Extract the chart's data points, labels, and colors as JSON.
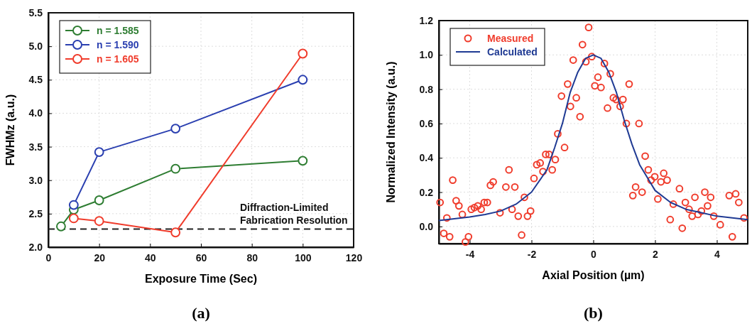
{
  "chart_data": [
    {
      "type": "line",
      "xlabel": "Exposure Time (Sec)",
      "ylabel": "FWHMz (a.u.)",
      "xlim": [
        0,
        120
      ],
      "xticks": [
        0,
        20,
        40,
        60,
        80,
        100,
        120
      ],
      "ylim": [
        2.0,
        5.5
      ],
      "yticks": [
        {
          "value": 2.0,
          "label": "2.0"
        },
        {
          "value": 2.5,
          "label": "2.5"
        },
        {
          "value": 3.0,
          "label": "3.0"
        },
        {
          "value": 3.5,
          "label": "3.5"
        },
        {
          "value": 4.0,
          "label": "4.0"
        },
        {
          "value": 4.5,
          "label": "4.5"
        },
        {
          "value": 5.0,
          "label": "5.0"
        },
        {
          "value": 5.5,
          "label": "5.5"
        }
      ],
      "grid": true,
      "legend": "top left",
      "marker": "circle",
      "series": [
        {
          "name": "n = 1.585",
          "color": "#2e7d32",
          "x": [
            5,
            10,
            20,
            50,
            100
          ],
          "values": [
            2.31,
            2.56,
            2.7,
            3.17,
            3.29
          ]
        },
        {
          "name": "n = 1.590",
          "color": "#2a3fb0",
          "x": [
            10,
            20,
            50,
            100
          ],
          "values": [
            2.63,
            3.42,
            3.77,
            4.5
          ]
        },
        {
          "name": "n = 1.605",
          "color": "#f03c2c",
          "x": [
            10,
            20,
            50,
            100
          ],
          "values": [
            2.43,
            2.39,
            2.22,
            4.89
          ]
        }
      ],
      "ref_lines": [
        {
          "axis": "y",
          "value": 2.27,
          "label": "Diffraction-Limited Fabrication Resolution",
          "color": "#222222",
          "line_style": "dashed"
        }
      ],
      "annotations": [
        "(a)"
      ]
    },
    {
      "type": "scatter",
      "xlabel": "Axial Position (µm)",
      "ylabel": "Normalized Intensity (a.u.)",
      "xlim": [
        -5,
        5
      ],
      "xticks": [
        -4,
        -2,
        0,
        2,
        4
      ],
      "ylim": [
        -0.1,
        1.2
      ],
      "yticks": [
        {
          "value": 0,
          "label": "0.0"
        },
        {
          "value": 0.2,
          "label": "0.2"
        },
        {
          "value": 0.4,
          "label": "0.4"
        },
        {
          "value": 0.6,
          "label": "0.6"
        },
        {
          "value": 0.8,
          "label": "0.8"
        },
        {
          "value": 1.0,
          "label": "1.0"
        },
        {
          "value": 1.2,
          "label": "1.2"
        }
      ],
      "grid": true,
      "legend": "top left",
      "series": [
        {
          "name": "Measured",
          "marker": "circle",
          "color": "#f03c2c",
          "x": [
            -4.96,
            -4.84,
            -4.74,
            -4.65,
            -4.55,
            -4.44,
            -4.35,
            -4.24,
            -4.14,
            -4.04,
            -3.95,
            -3.85,
            -3.74,
            -3.63,
            -3.53,
            -3.43,
            -3.33,
            -3.24,
            -3.02,
            -2.83,
            -2.73,
            -2.63,
            -2.54,
            -2.43,
            -2.32,
            -2.23,
            -2.13,
            -2.03,
            -1.92,
            -1.83,
            -1.72,
            -1.63,
            -1.54,
            -1.43,
            -1.33,
            -1.23,
            -1.15,
            -1.03,
            -0.93,
            -0.83,
            -0.74,
            -0.65,
            -0.55,
            -0.43,
            -0.35,
            -0.24,
            -0.15,
            -0.05,
            0.05,
            0.15,
            0.25,
            0.36,
            0.46,
            0.55,
            0.65,
            0.74,
            0.87,
            0.96,
            1.07,
            1.16,
            1.28,
            1.37,
            1.48,
            1.58,
            1.68,
            1.78,
            1.87,
            1.99,
            2.09,
            2.19,
            2.28,
            2.39,
            2.49,
            2.59,
            2.79,
            2.88,
            2.98,
            3.1,
            3.2,
            3.29,
            3.39,
            3.5,
            3.61,
            3.7,
            3.8,
            3.9,
            4.11,
            4.4,
            4.5,
            4.61,
            4.71,
            4.88
          ],
          "values": [
            0.14,
            -0.04,
            0.05,
            -0.06,
            0.27,
            0.15,
            0.12,
            0.07,
            -0.09,
            -0.06,
            0.1,
            0.11,
            0.12,
            0.1,
            0.14,
            0.14,
            0.24,
            0.26,
            0.08,
            0.23,
            0.33,
            0.1,
            0.23,
            0.06,
            -0.05,
            0.17,
            0.06,
            0.09,
            0.28,
            0.36,
            0.37,
            0.32,
            0.42,
            0.42,
            0.33,
            0.39,
            0.54,
            0.76,
            0.46,
            0.83,
            0.7,
            0.97,
            0.75,
            0.64,
            1.06,
            0.96,
            1.16,
            0.99,
            0.82,
            0.87,
            0.81,
            0.95,
            0.69,
            0.89,
            0.75,
            0.74,
            0.7,
            0.74,
            0.6,
            0.83,
            0.18,
            0.23,
            0.6,
            0.2,
            0.41,
            0.33,
            0.27,
            0.29,
            0.16,
            0.26,
            0.31,
            0.27,
            0.04,
            0.13,
            0.22,
            -0.01,
            0.14,
            0.1,
            0.06,
            0.17,
            0.07,
            0.09,
            0.2,
            0.12,
            0.17,
            0.06,
            0.01,
            0.18,
            -0.06,
            0.19,
            0.14,
            0.05
          ]
        },
        {
          "name": "Calculated",
          "type": "line",
          "marker": "none",
          "color": "#1f3a93",
          "x": [
            -5,
            -4.5,
            -4,
            -3.5,
            -3,
            -2.5,
            -2,
            -1.5,
            -1.25,
            -1,
            -0.75,
            -0.5,
            -0.25,
            0,
            0.25,
            0.5,
            0.75,
            1,
            1.25,
            1.5,
            2,
            2.5,
            3,
            3.5,
            4,
            4.5,
            5
          ],
          "values": [
            0.035,
            0.045,
            0.055,
            0.07,
            0.09,
            0.13,
            0.2,
            0.33,
            0.46,
            0.6,
            0.78,
            0.9,
            0.98,
            1.0,
            0.98,
            0.9,
            0.78,
            0.62,
            0.48,
            0.36,
            0.21,
            0.14,
            0.1,
            0.08,
            0.06,
            0.05,
            0.04
          ]
        }
      ],
      "annotations": [
        "(b)"
      ]
    }
  ]
}
